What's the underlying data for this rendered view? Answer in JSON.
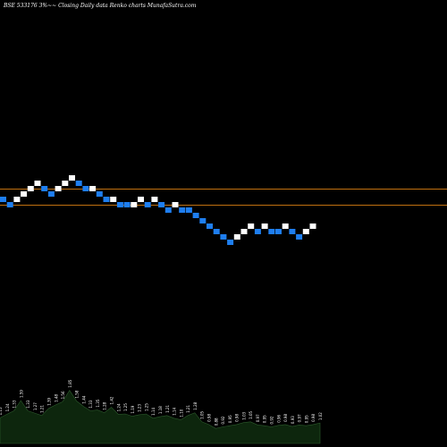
{
  "header": {
    "title": "BSE 533176  3%~~ Closing Daily data  Renko  charts MunafaSutra.com"
  },
  "colors": {
    "background": "#000000",
    "up_brick": "#ffffff",
    "down_brick": "#1e7ef0",
    "reference_line": "#c07010",
    "volume_fill": "#0d260d",
    "volume_outline": "#2c5a2c",
    "text": "#ffffff"
  },
  "chart_data": [
    {
      "type": "renko",
      "title": "BSE 533176  3%~~ Closing Daily data  Renko  charts MunafaSutra.com",
      "brick_size_percent": 3,
      "brick_levels": [
        0,
        -1,
        0,
        1,
        2,
        3,
        2,
        1,
        2,
        3,
        4,
        3,
        2,
        2,
        1,
        0,
        0,
        -1,
        -1,
        -1,
        0,
        -1,
        0,
        -1,
        -2,
        -1,
        -2,
        -2,
        -3,
        -4,
        -5,
        -6,
        -7,
        -8,
        -7,
        -6,
        -5,
        -6,
        -5,
        -6,
        -6,
        -5,
        -6,
        -7,
        -6,
        -5
      ],
      "brick_colors": [
        "down",
        "down",
        "up",
        "up",
        "up",
        "up",
        "down",
        "down",
        "up",
        "up",
        "up",
        "down",
        "down",
        "up",
        "down",
        "down",
        "up",
        "down",
        "down",
        "up",
        "up",
        "down",
        "up",
        "down",
        "down",
        "up",
        "down",
        "down",
        "down",
        "down",
        "down",
        "down",
        "down",
        "down",
        "up",
        "up",
        "up",
        "down",
        "up",
        "down",
        "down",
        "up",
        "down",
        "down",
        "up",
        "up"
      ],
      "reference_levels": [
        2,
        -1
      ],
      "grid": false
    },
    {
      "type": "area",
      "series": [
        {
          "values": [
            1.15,
            1.24,
            1.33,
            1.59,
            1.33,
            1.27,
            1.21,
            1.39,
            1.48,
            1.56,
            1.85,
            1.58,
            1.44,
            1.33,
            1.35,
            1.28,
            1.42,
            1.24,
            1.25,
            1.19,
            1.23,
            1.25,
            1.14,
            1.18,
            1.21,
            1.14,
            1.1,
            1.21,
            1.28,
            1.05,
            0.98,
            0.88,
            0.92,
            0.95,
            0.98,
            1.03,
            1.05,
            0.97,
            0.95,
            0.92,
            0.96,
            0.98,
            0.93,
            0.97,
            0.95,
            0.98,
            1.02
          ]
        }
      ],
      "data_labels": [
        "1.15",
        "1.24",
        "1.33",
        "1.59",
        "1.33",
        "1.27",
        "1.21",
        "1.39",
        "1.48",
        "1.56",
        "1.85",
        "1.58",
        "1.44",
        "1.33",
        "1.35",
        "1.28",
        "1.42",
        "1.24",
        "1.25",
        "1.19",
        "1.23",
        "1.25",
        "1.14",
        "1.18",
        "1.21",
        "1.14",
        "1.10",
        "1.21",
        "1.28",
        "1.05",
        "0.98",
        "0.88",
        "0.92",
        "0.95",
        "0.98",
        "1.03",
        "1.05",
        "0.97",
        "0.95",
        "0.92",
        "0.96",
        "0.98",
        "0.93",
        "0.97",
        "0.95",
        "0.98",
        "1.02"
      ]
    }
  ]
}
